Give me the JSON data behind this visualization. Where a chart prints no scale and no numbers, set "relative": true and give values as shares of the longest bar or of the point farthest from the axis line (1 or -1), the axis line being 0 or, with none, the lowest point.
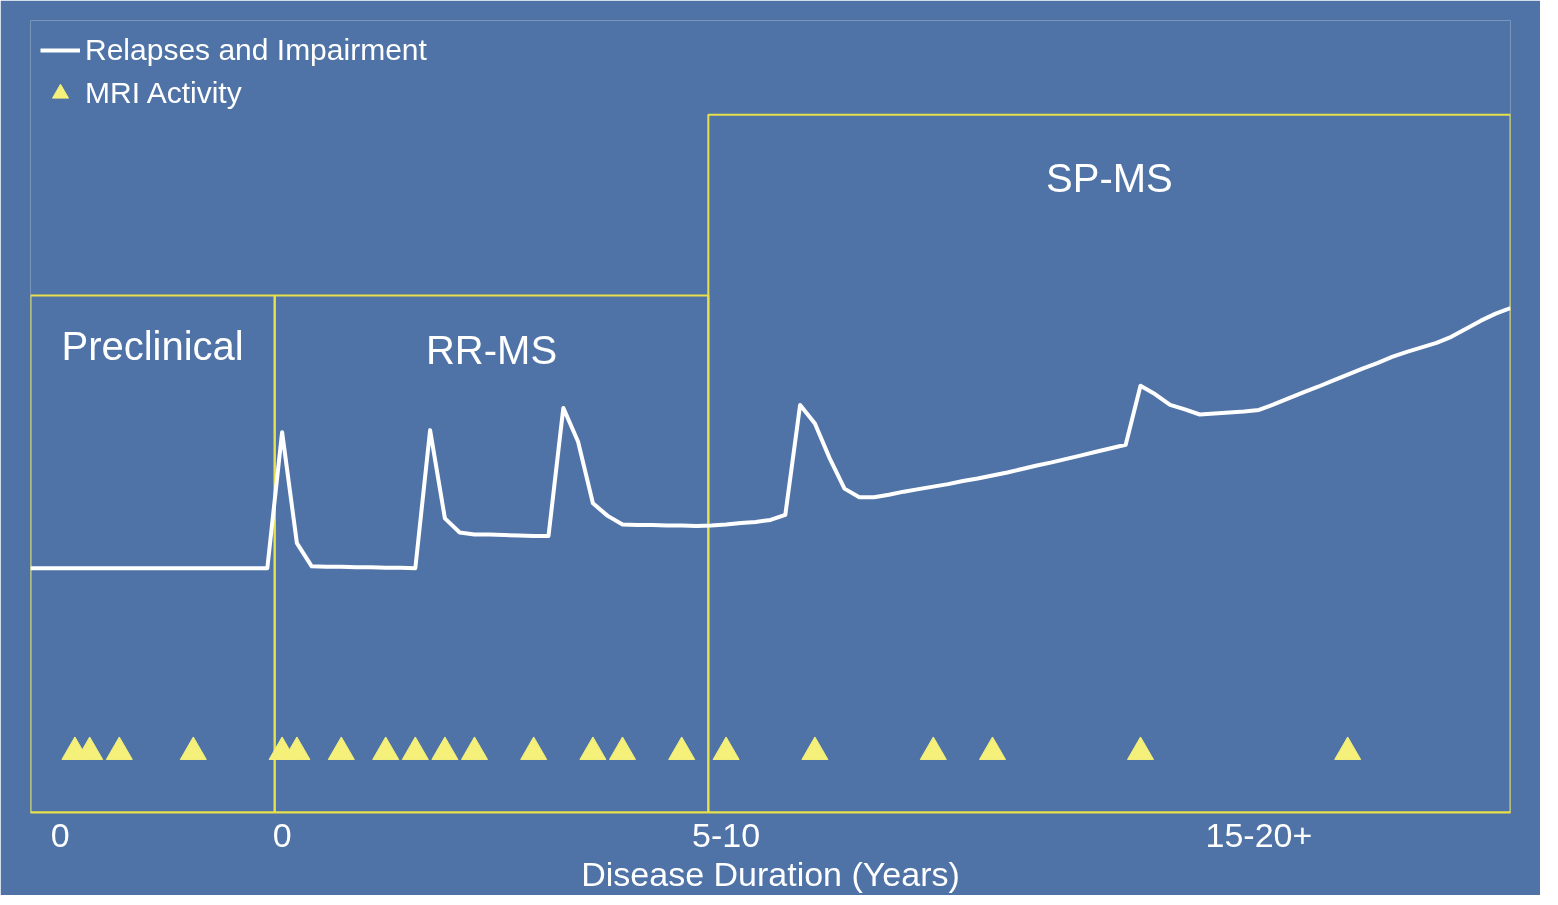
{
  "chart_data": {
    "type": "line",
    "relative": true,
    "xlabel": "Disease Duration (Years)",
    "categories": [
      null,
      null,
      "0",
      null,
      null,
      null,
      null,
      null,
      null,
      null,
      null,
      null,
      null,
      null,
      null,
      null,
      null,
      "0",
      null,
      null,
      null,
      null,
      null,
      null,
      null,
      null,
      null,
      null,
      null,
      null,
      null,
      null,
      null,
      null,
      null,
      null,
      null,
      null,
      null,
      null,
      null,
      null,
      null,
      null,
      null,
      null,
      null,
      "5-10",
      null,
      null,
      null,
      null,
      null,
      null,
      null,
      null,
      null,
      null,
      null,
      null,
      null,
      null,
      null,
      null,
      null,
      null,
      null,
      null,
      null,
      null,
      null,
      null,
      null,
      null,
      null,
      null,
      null,
      null,
      null,
      null,
      null,
      null,
      null,
      "15-20+",
      null,
      null,
      null,
      null,
      null,
      null,
      null,
      null,
      null,
      null,
      null,
      null,
      null,
      null,
      null,
      null,
      null
    ],
    "tick_labels": "x",
    "legend": "top left",
    "annotations": [
      "Preclinical",
      "RR-MS",
      "SP-MS"
    ],
    "series": [
      {
        "name": "Relapses and Impairment",
        "color": "#ffffff",
        "values": [
          0.484,
          0.484,
          0.484,
          0.484,
          0.484,
          0.484,
          0.484,
          0.484,
          0.484,
          0.484,
          0.484,
          0.484,
          0.484,
          0.484,
          0.484,
          0.484,
          0.484,
          0.754,
          0.534,
          0.488,
          0.487,
          0.487,
          0.486,
          0.486,
          0.485,
          0.485,
          0.484,
          0.758,
          0.583,
          0.555,
          0.551,
          0.551,
          0.55,
          0.549,
          0.548,
          0.548,
          0.802,
          0.735,
          0.613,
          0.588,
          0.571,
          0.57,
          0.57,
          0.569,
          0.569,
          0.568,
          0.569,
          0.571,
          0.574,
          0.576,
          0.58,
          0.59,
          0.808,
          0.771,
          0.702,
          0.642,
          0.625,
          0.625,
          0.63,
          0.636,
          0.641,
          0.646,
          0.651,
          0.657,
          0.662,
          0.668,
          0.674,
          0.681,
          0.688,
          0.694,
          0.701,
          0.708,
          0.715,
          0.722,
          0.729,
          0.846,
          0.829,
          0.808,
          0.799,
          0.789,
          0.791,
          0.793,
          0.795,
          0.798,
          0.809,
          0.821,
          0.833,
          0.844,
          0.856,
          0.868,
          0.88,
          0.891,
          0.903,
          0.913,
          0.922,
          0.931,
          0.943,
          0.959,
          0.975,
          0.989,
          1
        ]
      },
      {
        "name": "MRI Activity",
        "type": "scatter",
        "marker": "triangle",
        "color": "#f5f07a",
        "values": [
          null,
          null,
          null,
          0.12,
          0.12,
          null,
          0.12,
          null,
          null,
          null,
          null,
          0.12,
          null,
          null,
          null,
          null,
          null,
          0.12,
          0.12,
          null,
          null,
          0.12,
          null,
          null,
          0.12,
          null,
          0.12,
          null,
          0.12,
          null,
          0.12,
          null,
          null,
          null,
          0.12,
          null,
          null,
          null,
          0.12,
          null,
          0.12,
          null,
          null,
          null,
          0.12,
          null,
          null,
          0.12,
          null,
          null,
          null,
          null,
          null,
          0.12,
          null,
          null,
          null,
          null,
          null,
          null,
          null,
          0.12,
          null,
          null,
          null,
          0.12,
          null,
          null,
          null,
          null,
          null,
          null,
          null,
          null,
          null,
          0.12,
          null,
          null,
          null,
          null,
          null,
          null,
          null,
          null,
          null,
          null,
          null,
          null,
          null,
          0.12,
          null,
          null,
          null,
          null,
          null,
          null,
          null,
          null,
          null,
          null,
          null
        ]
      }
    ]
  }
}
